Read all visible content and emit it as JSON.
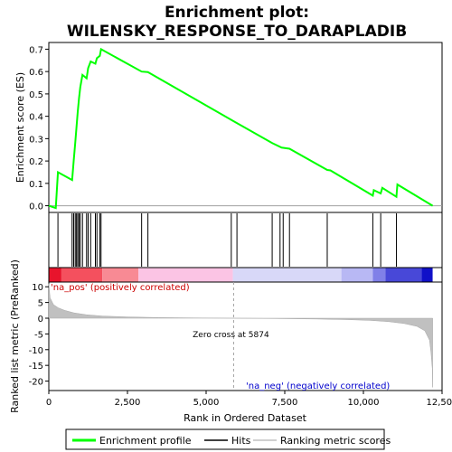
{
  "chart_data": {
    "type": "line",
    "title_line1": "Enrichment plot:",
    "title_line2": "WILENSKY_RESPONSE_TO_DARAPLADIB",
    "top_panel": {
      "ylabel": "Enrichment score (ES)",
      "ylim": [
        -0.03,
        0.73
      ],
      "yticks": [
        "0.0",
        "0.1",
        "0.2",
        "0.3",
        "0.4",
        "0.5",
        "0.6",
        "0.7"
      ],
      "ytick_values": [
        0.0,
        0.1,
        0.2,
        0.3,
        0.4,
        0.5,
        0.6,
        0.7
      ],
      "series_color": "#00ff00",
      "profile": [
        [
          0,
          0.0
        ],
        [
          220,
          -0.01
        ],
        [
          290,
          0.15
        ],
        [
          740,
          0.115
        ],
        [
          790,
          0.2
        ],
        [
          840,
          0.28
        ],
        [
          880,
          0.35
        ],
        [
          920,
          0.42
        ],
        [
          960,
          0.48
        ],
        [
          1000,
          0.53
        ],
        [
          1070,
          0.585
        ],
        [
          1200,
          0.57
        ],
        [
          1250,
          0.615
        ],
        [
          1330,
          0.645
        ],
        [
          1480,
          0.635
        ],
        [
          1530,
          0.66
        ],
        [
          1620,
          0.67
        ],
        [
          1660,
          0.7
        ],
        [
          2950,
          0.6
        ],
        [
          3150,
          0.598
        ],
        [
          5850,
          0.38
        ],
        [
          7100,
          0.28
        ],
        [
          7400,
          0.26
        ],
        [
          7650,
          0.255
        ],
        [
          8850,
          0.16
        ],
        [
          8950,
          0.158
        ],
        [
          10300,
          0.045
        ],
        [
          10330,
          0.07
        ],
        [
          10550,
          0.055
        ],
        [
          10600,
          0.08
        ],
        [
          11050,
          0.04
        ],
        [
          11080,
          0.095
        ],
        [
          12200,
          0.0
        ]
      ]
    },
    "hits": [
      290,
      740,
      790,
      840,
      880,
      920,
      960,
      1000,
      1070,
      1200,
      1250,
      1330,
      1480,
      1530,
      1620,
      1660,
      2950,
      3150,
      5800,
      5980,
      7100,
      7350,
      7450,
      7650,
      8850,
      10300,
      10550,
      11050
    ],
    "color_bar_segments": [
      {
        "from": 0,
        "to": 400,
        "color": "#e8142c"
      },
      {
        "from": 400,
        "to": 1700,
        "color": "#f4505e"
      },
      {
        "from": 1700,
        "to": 2850,
        "color": "#f88a94"
      },
      {
        "from": 2850,
        "to": 5850,
        "color": "#fbc4e4"
      },
      {
        "from": 5850,
        "to": 9300,
        "color": "#d8d8f8"
      },
      {
        "from": 9300,
        "to": 10300,
        "color": "#b8b8f4"
      },
      {
        "from": 10300,
        "to": 10700,
        "color": "#8080e8"
      },
      {
        "from": 10700,
        "to": 11850,
        "color": "#4848d8"
      },
      {
        "from": 11850,
        "to": 12200,
        "color": "#1010c8"
      }
    ],
    "bottom_panel": {
      "ylabel": "Ranked list metric (PreRanked)",
      "ylim": [
        -23,
        11.5
      ],
      "yticks": [
        "10",
        "5",
        "0",
        "-5",
        "-10",
        "-15",
        "-20"
      ],
      "ytick_values": [
        10,
        5,
        0,
        -5,
        -10,
        -15,
        -20
      ],
      "metric_curve": [
        [
          0,
          11.0
        ],
        [
          40,
          6.5
        ],
        [
          150,
          4.3
        ],
        [
          300,
          3.3
        ],
        [
          500,
          2.5
        ],
        [
          800,
          1.7
        ],
        [
          1200,
          1.1
        ],
        [
          1700,
          0.7
        ],
        [
          2500,
          0.4
        ],
        [
          3500,
          0.2
        ],
        [
          5000,
          0.05
        ],
        [
          5874,
          0.0
        ],
        [
          7000,
          -0.1
        ],
        [
          8500,
          -0.25
        ],
        [
          9500,
          -0.45
        ],
        [
          10200,
          -0.7
        ],
        [
          10800,
          -1.1
        ],
        [
          11300,
          -1.7
        ],
        [
          11700,
          -2.6
        ],
        [
          11950,
          -4.0
        ],
        [
          12100,
          -7.0
        ],
        [
          12150,
          -11.0
        ],
        [
          12190,
          -16.0
        ],
        [
          12200,
          -22.0
        ]
      ],
      "zero_cross_label": "Zero cross at 5874",
      "zero_cross_value": 5874,
      "pos_label": "'na_pos' (positively correlated)",
      "neg_label": "'na_neg' (negatively correlated)"
    },
    "xlabel": "Rank in Ordered Dataset",
    "xlim": [
      0,
      12500
    ],
    "xticks": [
      "0",
      "2,500",
      "5,000",
      "7,500",
      "10,000",
      "12,500"
    ],
    "xtick_values": [
      0,
      2500,
      5000,
      7500,
      10000,
      12500
    ],
    "legend": {
      "placement": "bottom",
      "items": [
        {
          "label": "Enrichment profile",
          "color": "#00ff00"
        },
        {
          "label": "Hits",
          "color": "#000000"
        },
        {
          "label": "Ranking metric scores",
          "color": "#c0c0c0"
        }
      ]
    }
  }
}
